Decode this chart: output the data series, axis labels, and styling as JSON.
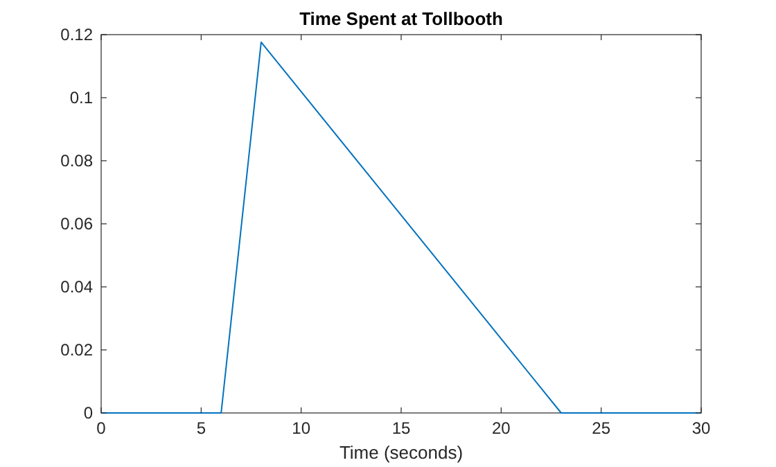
{
  "chart_data": {
    "type": "line",
    "title": "Time Spent at Tollbooth",
    "xlabel": "Time (seconds)",
    "x": [
      0,
      6,
      8,
      23,
      30
    ],
    "series": [
      {
        "color": "#0072bd",
        "values": [
          0,
          0,
          0.1176,
          0,
          0
        ]
      }
    ],
    "xlim": [
      0,
      30
    ],
    "xticks": [
      0,
      5,
      10,
      15,
      20,
      25,
      30
    ],
    "ylim": [
      0,
      0.12
    ],
    "yticks": [
      0,
      0.02,
      0.04,
      0.06,
      0.08,
      0.1,
      0.12
    ],
    "grid": false,
    "marker": "none",
    "line_style": "solid"
  }
}
